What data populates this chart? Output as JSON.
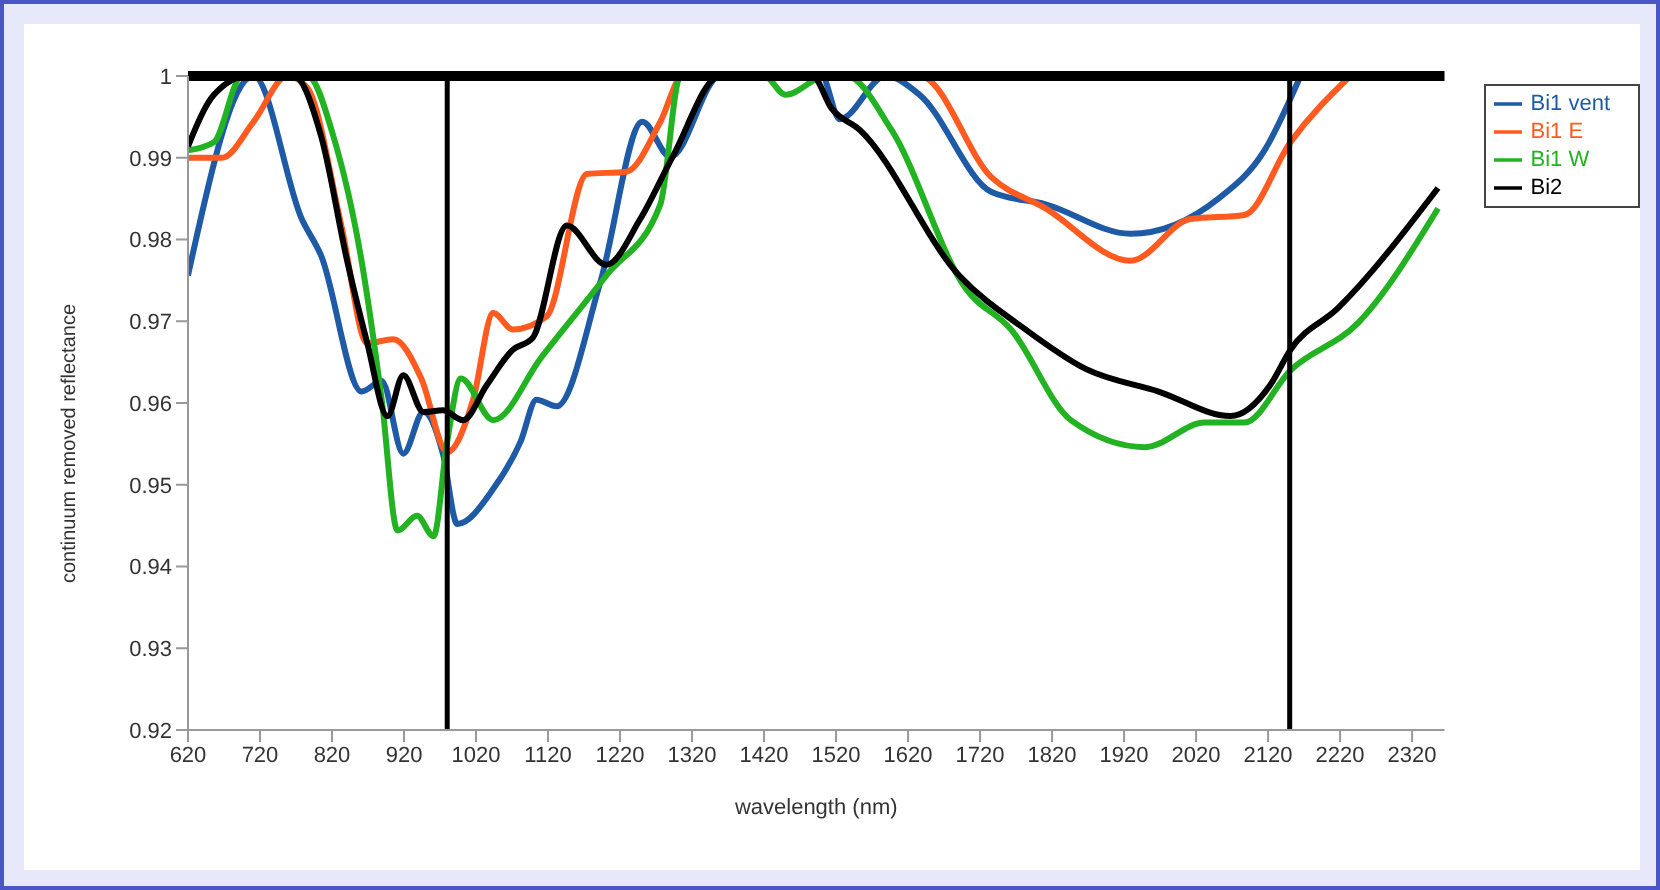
{
  "chart_data": {
    "type": "line",
    "xlabel": "wavelength (nm)",
    "ylabel": "continuum removed reflectance",
    "xlim": [
      620,
      2365
    ],
    "xticks": [
      620,
      720,
      820,
      920,
      1020,
      1120,
      1220,
      1320,
      1420,
      1520,
      1620,
      1720,
      1820,
      1920,
      2020,
      2120,
      2220,
      2320
    ],
    "ylim": [
      0.92,
      1
    ],
    "yticks": [
      0.92,
      0.93,
      0.94,
      0.95,
      0.96,
      0.97,
      0.98,
      0.99,
      1
    ],
    "grid": false,
    "legend": "top right",
    "marker": "none",
    "line_style": "solid",
    "ref_lines": [
      {
        "axis": "y",
        "value": 1,
        "color": "#000000"
      },
      {
        "axis": "x",
        "value": 980,
        "color": "#000000"
      },
      {
        "axis": "x",
        "value": 2150,
        "color": "#000000"
      }
    ],
    "series": [
      {
        "name": "Bi1 vent",
        "color": "#1f5aa6",
        "x": [
          620,
          711,
          778,
          805,
          861,
          889,
          919,
          947,
          974,
          994,
          1044,
          1082,
          1104,
          1132,
          1193,
          1251,
          1290,
          1359,
          1500,
          1525,
          1589,
          1636,
          1736,
          1811,
          1929,
          2051,
          2115,
          2165
        ],
        "values": [
          0.9756,
          1.0,
          0.9825,
          0.978,
          0.9614,
          0.9627,
          0.9538,
          0.9589,
          0.9538,
          0.9452,
          0.9495,
          0.9553,
          0.9604,
          0.9596,
          0.9749,
          0.9944,
          0.9901,
          1.0,
          1.0,
          0.9947,
          1.0,
          0.9977,
          0.9858,
          0.9843,
          0.9807,
          0.985,
          0.9909,
          1.0
        ]
      },
      {
        "name": "Bi1 E",
        "color": "#ff5a1f",
        "x": [
          620,
          667,
          711,
          758,
          786,
          833,
          869,
          905,
          944,
          980,
          1016,
          1044,
          1071,
          1118,
          1174,
          1229,
          1276,
          1307,
          1636,
          1736,
          1811,
          1929,
          2012,
          2087,
          2151,
          2234
        ],
        "values": [
          0.99,
          0.99,
          0.9944,
          1.0,
          0.9985,
          0.9817,
          0.9673,
          0.9678,
          0.963,
          0.954,
          0.9604,
          0.971,
          0.969,
          0.9706,
          0.988,
          0.9883,
          0.9944,
          1.0,
          1.0,
          0.9876,
          0.9838,
          0.9774,
          0.9825,
          0.983,
          0.9919,
          1.0
        ]
      },
      {
        "name": "Bi1 W",
        "color": "#22b222",
        "x": [
          620,
          656,
          695,
          786,
          822,
          861,
          889,
          911,
          938,
          961,
          980,
          999,
          1044,
          1110,
          1201,
          1276,
          1304,
          1420,
          1450,
          1506,
          1534,
          1597,
          1700,
          1763,
          1846,
          1949,
          2032,
          2087,
          2151,
          2245,
          2356
        ],
        "values": [
          0.9909,
          0.9919,
          1.0,
          1.0,
          0.9926,
          0.9774,
          0.9604,
          0.9444,
          0.9462,
          0.9437,
          0.9553,
          0.963,
          0.9579,
          0.9655,
          0.9756,
          0.9843,
          1.0,
          1.0,
          0.9977,
          1.0,
          1.0,
          0.9934,
          0.974,
          0.969,
          0.9579,
          0.9546,
          0.9576,
          0.9576,
          0.964,
          0.9698,
          0.9838
        ]
      },
      {
        "name": "Bi2",
        "color": "#000000",
        "x": [
          620,
          656,
          703,
          767,
          805,
          841,
          869,
          897,
          919,
          947,
          974,
          1002,
          1035,
          1071,
          1099,
          1146,
          1201,
          1248,
          1293,
          1359,
          1487,
          1514,
          1553,
          1691,
          1783,
          1866,
          1968,
          2068,
          2123,
          2151,
          2217,
          2356
        ],
        "values": [
          0.9914,
          0.9977,
          1.0,
          1.0,
          0.9926,
          0.9774,
          0.9673,
          0.9584,
          0.9634,
          0.9589,
          0.9591,
          0.9579,
          0.9622,
          0.9665,
          0.968,
          0.9817,
          0.9769,
          0.9825,
          0.9901,
          1.0,
          1.0,
          0.996,
          0.9934,
          0.9756,
          0.969,
          0.9642,
          0.9614,
          0.9584,
          0.9622,
          0.9665,
          0.9716,
          0.9863
        ]
      }
    ]
  }
}
